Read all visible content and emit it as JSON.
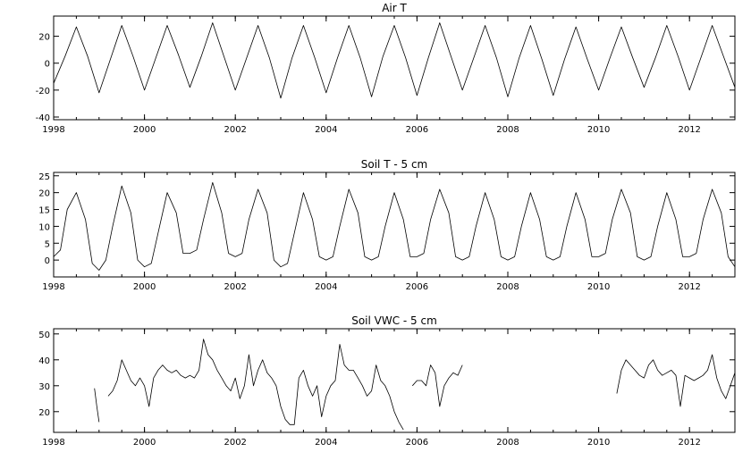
{
  "chart_data": [
    {
      "type": "line",
      "title": "Air T",
      "xlabel": "",
      "ylabel": "",
      "xlim": [
        1998,
        2013
      ],
      "ylim": [
        -42,
        35
      ],
      "xticks": [
        1998,
        2000,
        2002,
        2004,
        2006,
        2008,
        2010,
        2012
      ],
      "xtick_labels": [
        "1998",
        "2000",
        "2002",
        "2004",
        "2006",
        "2008",
        "2010",
        "2012"
      ],
      "yticks": [
        -40,
        -20,
        0,
        20
      ],
      "ytick_labels": [
        "-40",
        "-20",
        "0",
        "20"
      ],
      "grid": false,
      "series": [
        {
          "x": [
            1998.0,
            1998.25,
            1998.5,
            1998.75,
            1999.0,
            1999.25,
            1999.5,
            1999.75,
            2000.0,
            2000.25,
            2000.5,
            2000.75,
            2001.0,
            2001.25,
            2001.5,
            2001.75,
            2002.0,
            2002.25,
            2002.5,
            2002.75,
            2003.0,
            2003.25,
            2003.5,
            2003.75,
            2004.0,
            2004.25,
            2004.5,
            2004.75,
            2005.0,
            2005.25,
            2005.5,
            2005.75,
            2006.0,
            2006.25,
            2006.5,
            2006.75,
            2007.0,
            2007.25,
            2007.5,
            2007.75,
            2008.0,
            2008.25,
            2008.5,
            2008.75,
            2009.0,
            2009.25,
            2009.5,
            2009.75,
            2010.0,
            2010.25,
            2010.5,
            2010.75,
            2011.0,
            2011.25,
            2011.5,
            2011.75,
            2012.0,
            2012.25,
            2012.5,
            2012.75,
            2013.0
          ],
          "y": [
            -15,
            5,
            27,
            5,
            -22,
            3,
            28,
            5,
            -20,
            4,
            28,
            6,
            -18,
            5,
            30,
            5,
            -20,
            4,
            28,
            4,
            -26,
            4,
            28,
            4,
            -22,
            4,
            28,
            4,
            -25,
            5,
            28,
            4,
            -24,
            4,
            30,
            5,
            -20,
            4,
            28,
            4,
            -25,
            4,
            28,
            3,
            -24,
            3,
            27,
            3,
            -20,
            4,
            27,
            4,
            -18,
            4,
            28,
            5,
            -20,
            4,
            28,
            5,
            -18
          ]
        }
      ]
    },
    {
      "type": "line",
      "title": "Soil T - 5 cm",
      "xlabel": "",
      "ylabel": "",
      "xlim": [
        1998,
        2013
      ],
      "ylim": [
        -5,
        26
      ],
      "xticks": [
        1998,
        2000,
        2002,
        2004,
        2006,
        2008,
        2010,
        2012
      ],
      "xtick_labels": [
        "1998",
        "2000",
        "2002",
        "2004",
        "2006",
        "2008",
        "2010",
        "2012"
      ],
      "yticks": [
        0,
        5,
        10,
        15,
        20,
        25
      ],
      "ytick_labels": [
        "0",
        "5",
        "10",
        "15",
        "20",
        "25"
      ],
      "grid": false,
      "series": [
        {
          "x": [
            1998.0,
            1998.15,
            1998.3,
            1998.5,
            1998.7,
            1998.85,
            1999.0,
            1999.15,
            1999.3,
            1999.5,
            1999.7,
            1999.85,
            2000.0,
            2000.15,
            2000.3,
            2000.5,
            2000.7,
            2000.85,
            2001.0,
            2001.15,
            2001.3,
            2001.5,
            2001.7,
            2001.85,
            2002.0,
            2002.15,
            2002.3,
            2002.5,
            2002.7,
            2002.85,
            2003.0,
            2003.15,
            2003.3,
            2003.5,
            2003.7,
            2003.85,
            2004.0,
            2004.15,
            2004.3,
            2004.5,
            2004.7,
            2004.85,
            2005.0,
            2005.15,
            2005.3,
            2005.5,
            2005.7,
            2005.85,
            2006.0,
            2006.15,
            2006.3,
            2006.5,
            2006.7,
            2006.85,
            2007.0,
            2007.15,
            2007.3,
            2007.5,
            2007.7,
            2007.85,
            2008.0,
            2008.15,
            2008.3,
            2008.5,
            2008.7,
            2008.85,
            2009.0,
            2009.15,
            2009.3,
            2009.5,
            2009.7,
            2009.85,
            2010.0,
            2010.15,
            2010.3,
            2010.5,
            2010.7,
            2010.85,
            2011.0,
            2011.15,
            2011.3,
            2011.5,
            2011.7,
            2011.85,
            2012.0,
            2012.15,
            2012.3,
            2012.5,
            2012.7,
            2012.85,
            2013.0
          ],
          "y": [
            1,
            3,
            15,
            20,
            12,
            -1,
            -3,
            0,
            10,
            22,
            14,
            0,
            -2,
            -1,
            8,
            20,
            14,
            2,
            2,
            3,
            12,
            23,
            14,
            2,
            1,
            2,
            12,
            21,
            14,
            0,
            -2,
            -1,
            8,
            20,
            12,
            1,
            0,
            1,
            10,
            21,
            14,
            1,
            0,
            1,
            10,
            20,
            12,
            1,
            1,
            2,
            12,
            21,
            14,
            1,
            0,
            1,
            10,
            20,
            12,
            1,
            0,
            1,
            10,
            20,
            12,
            1,
            0,
            1,
            10,
            20,
            12,
            1,
            1,
            2,
            12,
            21,
            14,
            1,
            0,
            1,
            10,
            20,
            12,
            1,
            1,
            2,
            12,
            21,
            14,
            1,
            -2
          ]
        }
      ]
    },
    {
      "type": "line",
      "title": "Soil VWC - 5 cm",
      "xlabel": "",
      "ylabel": "",
      "xlim": [
        1998,
        2013
      ],
      "ylim": [
        12,
        52
      ],
      "xticks": [
        1998,
        2000,
        2002,
        2004,
        2006,
        2008,
        2010,
        2012
      ],
      "xtick_labels": [
        "1998",
        "2000",
        "2002",
        "2004",
        "2006",
        "2008",
        "2010",
        "2012"
      ],
      "yticks": [
        20,
        30,
        40,
        50
      ],
      "ytick_labels": [
        "20",
        "30",
        "40",
        "50"
      ],
      "grid": false,
      "series": [
        {
          "x": [
            1998.9,
            1998.95,
            1999.0,
            1999.1,
            1999.2,
            1999.3,
            1999.4,
            1999.5,
            1999.6,
            1999.7,
            1999.8,
            1999.9,
            2000.0,
            2000.1,
            2000.2,
            2000.3,
            2000.4,
            2000.5,
            2000.6,
            2000.7,
            2000.8,
            2000.9,
            2001.0,
            2001.1,
            2001.2,
            2001.3,
            2001.4,
            2001.5,
            2001.6,
            2001.7,
            2001.8,
            2001.9,
            2002.0,
            2002.1,
            2002.2,
            2002.3,
            2002.4,
            2002.5,
            2002.6,
            2002.7,
            2002.8,
            2002.9,
            2003.0,
            2003.1,
            2003.2,
            2003.3,
            2003.4,
            2003.5,
            2003.6,
            2003.7,
            2003.8,
            2003.9,
            2004.0,
            2004.1,
            2004.2,
            2004.3,
            2004.4,
            2004.5,
            2004.6,
            2004.7,
            2004.8,
            2004.9,
            2005.0,
            2005.1,
            2005.2,
            2005.3,
            2005.4,
            2005.5,
            2005.6,
            2005.7,
            2005.8,
            2005.9,
            2006.0,
            2006.1,
            2006.2,
            2006.3,
            2006.4,
            2006.5,
            2006.6,
            2006.7,
            2006.8,
            2006.9,
            2007.0
          ],
          "y": [
            29,
            22,
            16,
            null,
            26,
            28,
            32,
            40,
            36,
            32,
            30,
            33,
            30,
            22,
            33,
            36,
            38,
            36,
            35,
            36,
            34,
            33,
            34,
            33,
            36,
            48,
            42,
            40,
            36,
            33,
            30,
            28,
            33,
            25,
            30,
            42,
            30,
            36,
            40,
            35,
            33,
            30,
            22,
            17,
            15,
            15,
            33,
            36,
            30,
            26,
            30,
            18,
            26,
            30,
            32,
            46,
            38,
            36,
            36,
            33,
            30,
            26,
            28,
            38,
            32,
            30,
            26,
            20,
            16,
            13,
            null,
            30,
            32,
            32,
            30,
            38,
            35,
            22,
            30,
            33,
            35,
            34,
            38
          ]
        },
        {
          "x": [
            2010.4,
            2010.5,
            2010.6,
            2010.7,
            2010.8,
            2010.9,
            2011.0,
            2011.1,
            2011.2,
            2011.3,
            2011.4,
            2011.5,
            2011.6,
            2011.7,
            2011.8,
            2011.9,
            2012.0,
            2012.1,
            2012.2,
            2012.3,
            2012.4,
            2012.5,
            2012.6,
            2012.7,
            2012.8,
            2012.9,
            2013.0
          ],
          "y": [
            27,
            36,
            40,
            38,
            36,
            34,
            33,
            38,
            40,
            36,
            34,
            35,
            36,
            34,
            22,
            34,
            33,
            32,
            33,
            34,
            36,
            42,
            33,
            28,
            25,
            30,
            35
          ]
        }
      ]
    }
  ]
}
